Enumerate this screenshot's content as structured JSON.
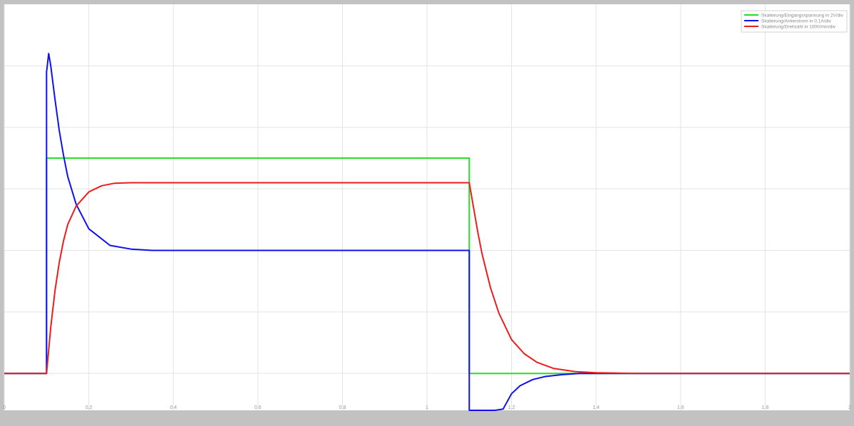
{
  "chart_data": {
    "type": "line",
    "title": "",
    "xlabel": "",
    "ylabel": "",
    "xlim": [
      0,
      2
    ],
    "ylim": [
      -0.6,
      6
    ],
    "grid": true,
    "legend_position": "top-right",
    "x_ticks": [
      {
        "value": 0,
        "label": "0"
      },
      {
        "value": 0.2,
        "label": "0.2"
      },
      {
        "value": 0.4,
        "label": "0.4"
      },
      {
        "value": 0.6,
        "label": "0.6"
      },
      {
        "value": 0.8,
        "label": "0.8"
      },
      {
        "value": 1.0,
        "label": "1"
      },
      {
        "value": 1.2,
        "label": "1.2"
      },
      {
        "value": 1.4,
        "label": "1.4"
      },
      {
        "value": 1.6,
        "label": "1.6"
      },
      {
        "value": 1.8,
        "label": "1.8"
      },
      {
        "value": 2.0,
        "label": "2"
      }
    ],
    "y_grid": [
      0,
      1,
      2,
      3,
      4,
      5
    ],
    "series": [
      {
        "name": "Skalierung/Eingangsspannung in 2V/div",
        "color": "#22dd22",
        "x": [
          0,
          0.1,
          0.1,
          1.1,
          1.1,
          2.0
        ],
        "y": [
          0,
          0,
          3.5,
          3.5,
          0,
          0
        ]
      },
      {
        "name": "Skalierung/Ankerstrom in 0.1A/div",
        "color": "#1010ee",
        "x": [
          0,
          0.1,
          0.1,
          0.105,
          0.11,
          0.12,
          0.13,
          0.14,
          0.15,
          0.17,
          0.2,
          0.25,
          0.3,
          0.35,
          0.4,
          0.5,
          0.6,
          0.7,
          0.8,
          0.9,
          1.0,
          1.1,
          1.1,
          1.12,
          1.14,
          1.16,
          1.18,
          1.2,
          1.22,
          1.25,
          1.28,
          1.32,
          1.36,
          1.4,
          1.5,
          1.6,
          1.7,
          1.8,
          1.9,
          2.0
        ],
        "y": [
          0,
          0,
          4.9,
          5.2,
          5.0,
          4.45,
          3.95,
          3.55,
          3.2,
          2.75,
          2.35,
          2.08,
          2.02,
          2.0,
          2.0,
          2.0,
          2.0,
          2.0,
          2.0,
          2.0,
          2.0,
          2.0,
          -0.6,
          -0.6,
          -0.6,
          -0.6,
          -0.58,
          -0.33,
          -0.2,
          -0.1,
          -0.05,
          -0.02,
          0,
          0,
          0,
          0,
          0,
          0,
          0,
          0
        ]
      },
      {
        "name": "Skalierung/Drehzahl in 1000/min/div",
        "color": "#ee1c1c",
        "x": [
          0,
          0.1,
          0.11,
          0.12,
          0.13,
          0.14,
          0.15,
          0.17,
          0.2,
          0.23,
          0.26,
          0.3,
          0.35,
          0.4,
          0.5,
          0.6,
          0.7,
          0.8,
          0.9,
          1.0,
          1.1,
          1.11,
          1.12,
          1.13,
          1.15,
          1.17,
          1.2,
          1.23,
          1.26,
          1.3,
          1.35,
          1.4,
          1.5,
          1.6,
          1.7,
          1.8,
          1.9,
          2.0
        ],
        "y": [
          0,
          0,
          0.75,
          1.35,
          1.8,
          2.15,
          2.42,
          2.72,
          2.95,
          3.05,
          3.09,
          3.1,
          3.1,
          3.1,
          3.1,
          3.1,
          3.1,
          3.1,
          3.1,
          3.1,
          3.1,
          2.7,
          2.3,
          1.95,
          1.4,
          0.98,
          0.55,
          0.32,
          0.18,
          0.08,
          0.03,
          0.01,
          0,
          0,
          0,
          0,
          0,
          0
        ]
      }
    ]
  }
}
